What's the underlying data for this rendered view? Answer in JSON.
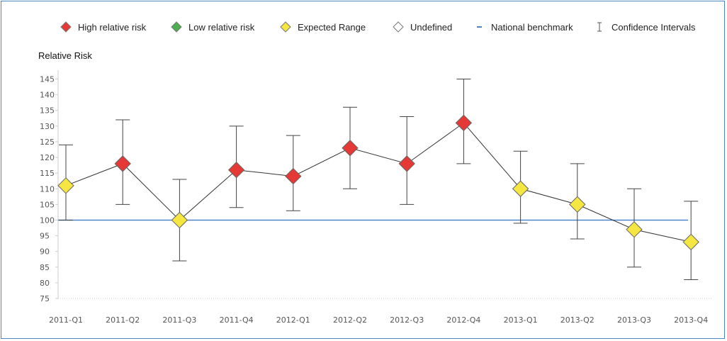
{
  "chart_data": {
    "type": "line",
    "title": "",
    "ylabel": "Relative Risk",
    "xlabel": "",
    "ylim": [
      75,
      145
    ],
    "yticks": [
      75,
      80,
      85,
      90,
      95,
      100,
      105,
      110,
      115,
      120,
      125,
      130,
      135,
      140,
      145
    ],
    "categories": [
      "2011-Q1",
      "2011-Q2",
      "2011-Q3",
      "2011-Q4",
      "2012-Q1",
      "2012-Q2",
      "2012-Q3",
      "2012-Q4",
      "2013-Q1",
      "2013-Q2",
      "2013-Q3",
      "2013-Q4"
    ],
    "benchmark": 100,
    "legend": [
      {
        "key": "high",
        "label": "High relative risk",
        "color": "#e53935",
        "icon": "red-diamond"
      },
      {
        "key": "low",
        "label": "Low relative risk",
        "color": "#4caf50",
        "icon": "green-diamond"
      },
      {
        "key": "expected",
        "label": "Expected Range",
        "color": "#f5e642",
        "icon": "yellow-diamond"
      },
      {
        "key": "undefined",
        "label": "Undefined",
        "color": "#ffffff",
        "icon": "white-diamond"
      },
      {
        "key": "benchmark",
        "label": "National benchmark",
        "color": "#4a86c8",
        "icon": "blue-dash"
      },
      {
        "key": "ci",
        "label": "Confidence Intervals",
        "color": "#555555",
        "icon": "i-beam"
      }
    ],
    "points": [
      {
        "x": "2011-Q1",
        "value": 111,
        "lower": 100,
        "upper": 124,
        "category": "expected"
      },
      {
        "x": "2011-Q2",
        "value": 118,
        "lower": 105,
        "upper": 132,
        "category": "high"
      },
      {
        "x": "2011-Q3",
        "value": 100,
        "lower": 87,
        "upper": 113,
        "category": "expected"
      },
      {
        "x": "2011-Q4",
        "value": 116,
        "lower": 104,
        "upper": 130,
        "category": "high"
      },
      {
        "x": "2012-Q1",
        "value": 114,
        "lower": 103,
        "upper": 127,
        "category": "high"
      },
      {
        "x": "2012-Q2",
        "value": 123,
        "lower": 110,
        "upper": 136,
        "category": "high"
      },
      {
        "x": "2012-Q3",
        "value": 118,
        "lower": 105,
        "upper": 133,
        "category": "high"
      },
      {
        "x": "2012-Q4",
        "value": 131,
        "lower": 118,
        "upper": 145,
        "category": "high"
      },
      {
        "x": "2013-Q1",
        "value": 110,
        "lower": 99,
        "upper": 122,
        "category": "expected"
      },
      {
        "x": "2013-Q2",
        "value": 105,
        "lower": 94,
        "upper": 118,
        "category": "expected"
      },
      {
        "x": "2013-Q3",
        "value": 97,
        "lower": 85,
        "upper": 110,
        "category": "expected"
      },
      {
        "x": "2013-Q4",
        "value": 93,
        "lower": 81,
        "upper": 106,
        "category": "expected"
      }
    ],
    "grid": false,
    "legend_position": "top"
  }
}
